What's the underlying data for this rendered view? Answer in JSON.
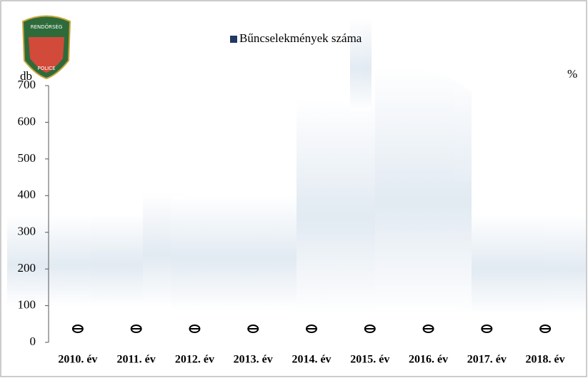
{
  "logo": {
    "top_text": "RENDŐRSÉG",
    "bottom_text": "POLICE"
  },
  "chart_data": {
    "type": "bar",
    "y_label": "db",
    "y2_label": "%",
    "categories": [
      "2010. év",
      "2011. év",
      "2012. év",
      "2013. év",
      "2014. év",
      "2015. év",
      "2016. év",
      "2017. év",
      "2018. év"
    ],
    "series": [
      {
        "name": "Bűncselekmények száma",
        "color": "#1f3864",
        "values": [
          0,
          0,
          0,
          0,
          0,
          0,
          0,
          0,
          0
        ]
      }
    ],
    "ylim": [
      0,
      700
    ],
    "yticks": [
      0,
      100,
      200,
      300,
      400,
      500,
      600,
      700
    ],
    "legend": "top",
    "grid": false
  }
}
